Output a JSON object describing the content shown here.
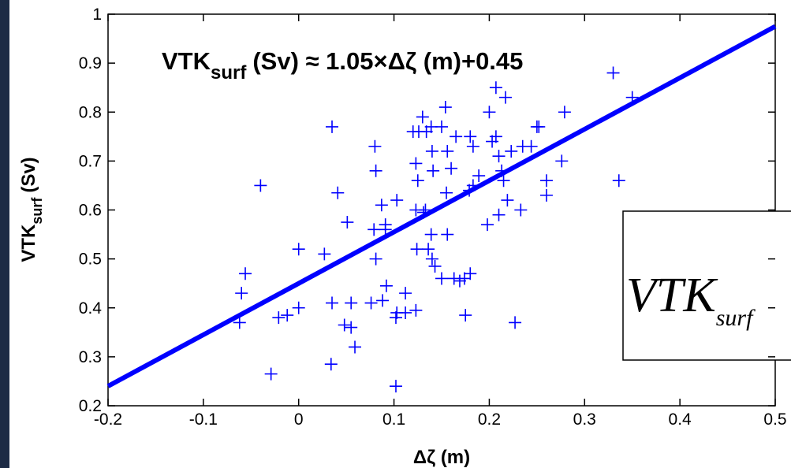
{
  "chart_data": {
    "type": "scatter",
    "title": {
      "main": "VTK",
      "sub": "surf",
      "rest": "(Sv) ≈ 1.05×Δζ (m)+0.45"
    },
    "x_label": "Δζ (m)",
    "y_label": {
      "main": "VTK",
      "sub": "surf",
      "rest": "(Sv)"
    },
    "annotation": {
      "main": "VTK",
      "sub": "surf"
    },
    "xlim": [
      -0.2,
      0.5
    ],
    "ylim": [
      0.2,
      1
    ],
    "xticks": [
      -0.2,
      -0.1,
      0,
      0.1,
      0.2,
      0.3,
      0.4,
      0.5
    ],
    "yticks": [
      0.2,
      0.3,
      0.4,
      0.5,
      0.6,
      0.7,
      0.8,
      0.9,
      1
    ],
    "series": [
      {
        "type": "scatter",
        "color": "#0000ff",
        "x": [
          0.33,
          0.35,
          0.336,
          0.279,
          0.276,
          0.26,
          0.26,
          0.25,
          0.252,
          0.244,
          0.235,
          0.217,
          0.207,
          0.2,
          0.207,
          0.203,
          0.21,
          0.223,
          0.213,
          0.215,
          0.219,
          0.21,
          0.198,
          0.233,
          0.189,
          0.183,
          0.179,
          0.183,
          0.18,
          0.165,
          0.154,
          0.15,
          0.139,
          0.13,
          0.134,
          0.14,
          0.141,
          0.156,
          0.16,
          0.155,
          0.123,
          0.125,
          0.123,
          0.131,
          0.133,
          0.126,
          0.12,
          0.08,
          0.081,
          0.079,
          0.087,
          0.091,
          0.091,
          0.103,
          0.081,
          0.139,
          0.156,
          0.136,
          0.124,
          0.14,
          0.143,
          0.15,
          0.163,
          0.169,
          0.174,
          0.18,
          0.175,
          0.227,
          0.092,
          0.088,
          0.076,
          0.055,
          0.035,
          0.112,
          0.103,
          0.102,
          0.112,
          0.123,
          0.048,
          0.055,
          0.059,
          0.034,
          -0.029,
          0.102,
          0,
          -0.012,
          -0.021,
          -0.056,
          -0.06,
          -0.062,
          -0.04,
          0.041,
          0.035,
          0.051,
          0.027,
          0
        ],
        "values": [
          0.88,
          0.83,
          0.66,
          0.8,
          0.7,
          0.66,
          0.63,
          0.77,
          0.77,
          0.73,
          0.73,
          0.83,
          0.85,
          0.8,
          0.75,
          0.74,
          0.71,
          0.72,
          0.68,
          0.66,
          0.62,
          0.59,
          0.57,
          0.6,
          0.67,
          0.65,
          0.64,
          0.73,
          0.75,
          0.75,
          0.81,
          0.77,
          0.77,
          0.79,
          0.76,
          0.72,
          0.68,
          0.72,
          0.685,
          0.635,
          0.695,
          0.66,
          0.6,
          0.595,
          0.6,
          0.76,
          0.76,
          0.73,
          0.68,
          0.56,
          0.61,
          0.57,
          0.56,
          0.62,
          0.5,
          0.55,
          0.55,
          0.52,
          0.52,
          0.5,
          0.485,
          0.46,
          0.46,
          0.455,
          0.46,
          0.47,
          0.385,
          0.37,
          0.445,
          0.415,
          0.41,
          0.41,
          0.41,
          0.43,
          0.39,
          0.38,
          0.39,
          0.395,
          0.365,
          0.36,
          0.32,
          0.285,
          0.265,
          0.24,
          0.4,
          0.385,
          0.38,
          0.47,
          0.43,
          0.37,
          0.65,
          0.635,
          0.77,
          0.575,
          0.51,
          0.52
        ]
      },
      {
        "type": "line",
        "color": "#0000ff",
        "x": [
          -0.2,
          0.5
        ],
        "values": [
          0.24,
          0.975
        ]
      }
    ]
  }
}
